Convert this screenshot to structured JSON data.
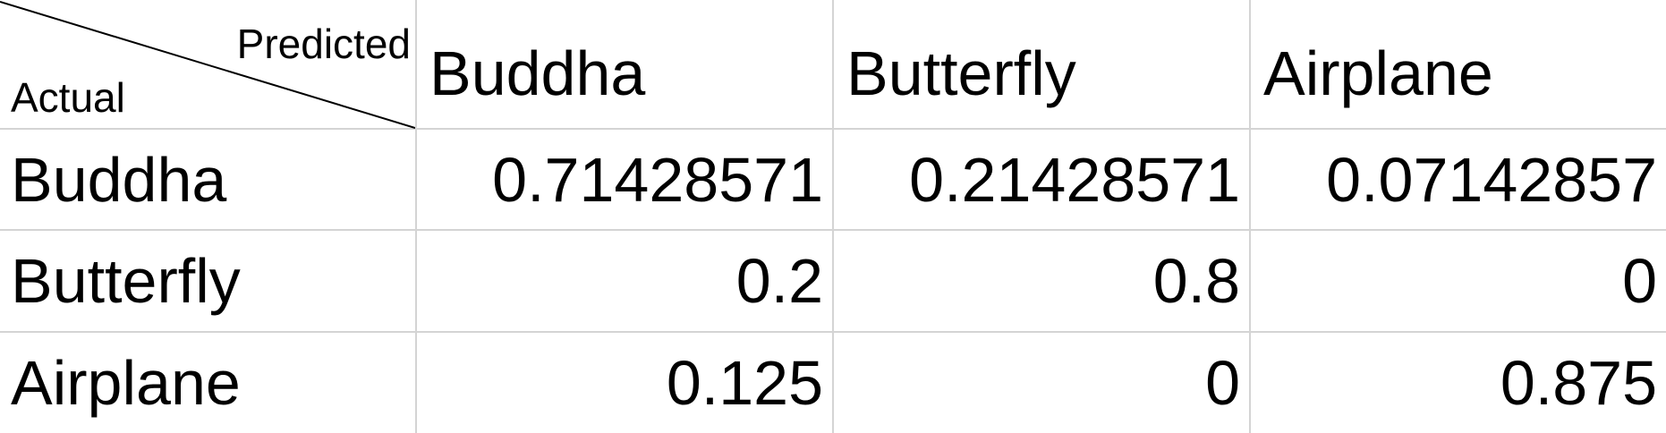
{
  "chart_data": {
    "type": "table",
    "corner": {
      "predicted_label": "Predicted",
      "actual_label": "Actual"
    },
    "columns": [
      "Buddha",
      "Butterfly",
      "Airplane"
    ],
    "rows": [
      {
        "label": "Buddha",
        "values": [
          "0.71428571",
          "0.21428571",
          "0.07142857"
        ]
      },
      {
        "label": "Butterfly",
        "values": [
          "0.2",
          "0.8",
          "0"
        ]
      },
      {
        "label": "Airplane",
        "values": [
          "0.125",
          "0",
          "0.875"
        ]
      }
    ]
  }
}
